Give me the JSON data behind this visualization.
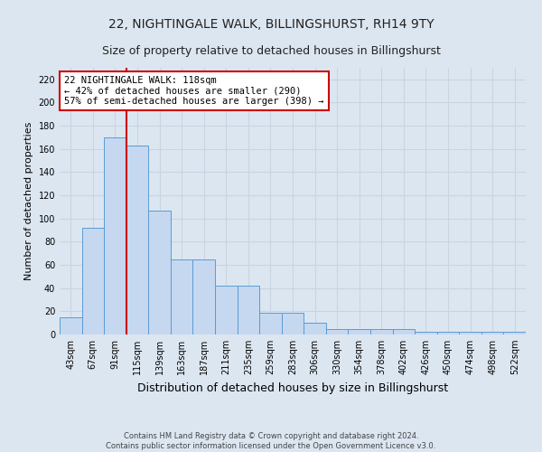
{
  "title": "22, NIGHTINGALE WALK, BILLINGSHURST, RH14 9TY",
  "subtitle": "Size of property relative to detached houses in Billingshurst",
  "xlabel": "Distribution of detached houses by size in Billingshurst",
  "ylabel": "Number of detached properties",
  "footer_line1": "Contains HM Land Registry data © Crown copyright and database right 2024.",
  "footer_line2": "Contains public sector information licensed under the Open Government Licence v3.0.",
  "bin_labels": [
    "43sqm",
    "67sqm",
    "91sqm",
    "115sqm",
    "139sqm",
    "163sqm",
    "187sqm",
    "211sqm",
    "235sqm",
    "259sqm",
    "283sqm",
    "306sqm",
    "330sqm",
    "354sqm",
    "378sqm",
    "402sqm",
    "426sqm",
    "450sqm",
    "474sqm",
    "498sqm",
    "522sqm"
  ],
  "bar_values": [
    15,
    92,
    170,
    163,
    107,
    65,
    65,
    42,
    42,
    19,
    19,
    10,
    5,
    5,
    5,
    5,
    2,
    2,
    2,
    2,
    2
  ],
  "bar_color": "#c5d8f0",
  "bar_edge_color": "#5b9bd5",
  "vline_x": 2.5,
  "vline_color": "#cc0000",
  "annotation_text": "22 NIGHTINGALE WALK: 118sqm\n← 42% of detached houses are smaller (290)\n57% of semi-detached houses are larger (398) →",
  "annotation_box_color": "#ffffff",
  "annotation_box_edge": "#cc0000",
  "ylim": [
    0,
    230
  ],
  "yticks": [
    0,
    20,
    40,
    60,
    80,
    100,
    120,
    140,
    160,
    180,
    200,
    220
  ],
  "grid_color": "#c8d4e3",
  "background_color": "#dce6f1",
  "title_fontsize": 10,
  "subtitle_fontsize": 9,
  "tick_fontsize": 7,
  "ylabel_fontsize": 8,
  "xlabel_fontsize": 9,
  "annotation_fontsize": 7.5,
  "footer_fontsize": 6
}
